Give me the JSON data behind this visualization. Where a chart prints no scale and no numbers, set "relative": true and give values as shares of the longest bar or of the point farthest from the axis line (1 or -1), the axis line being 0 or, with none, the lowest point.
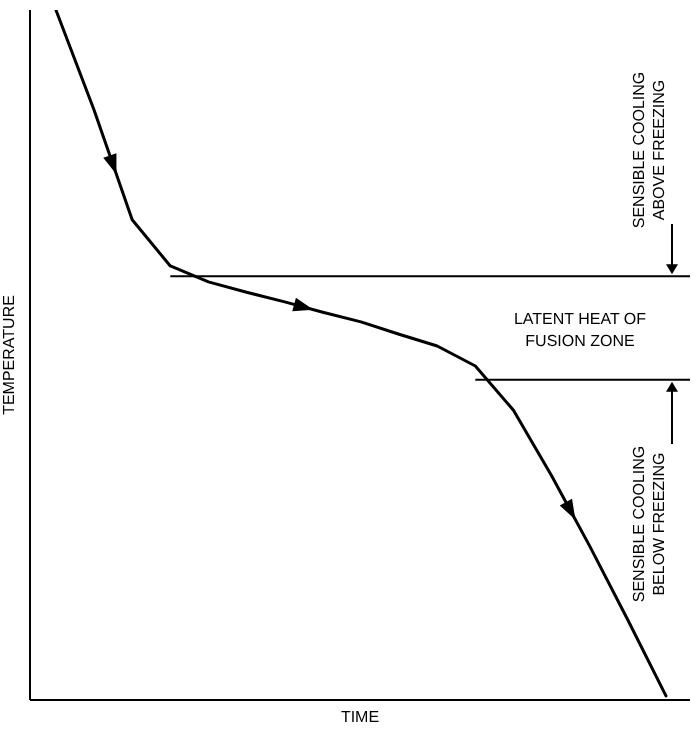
{
  "chart_data": {
    "type": "line",
    "relative": true,
    "xlabel": "TIME",
    "ylabel": "TEMPERATURE",
    "categories": [
      null,
      null,
      null,
      null,
      null,
      null,
      null,
      null,
      null,
      null,
      null,
      null,
      null,
      null,
      null,
      null,
      null
    ],
    "series": [
      {
        "color": "#000000",
        "values": [
          1.0,
          0.855,
          0.696,
          0.629,
          0.606,
          0.591,
          0.577,
          0.562,
          0.548,
          0.53,
          0.513,
          0.484,
          0.42,
          0.325,
          0.223,
          0.116,
          0.006
        ]
      }
    ],
    "ref_lines": [
      {
        "axis": "y",
        "value": 0.614,
        "color": "#000000"
      },
      {
        "axis": "y",
        "value": 0.464,
        "color": "#000000"
      }
    ],
    "annotations": [
      "SENSIBLE COOLING ABOVE FREEZING",
      "LATENT HEAT OF FUSION ZONE",
      "SENSIBLE COOLING BELOW FREEZING"
    ],
    "grid": false,
    "legend": false,
    "marker": "none",
    "line_style": "solid"
  }
}
